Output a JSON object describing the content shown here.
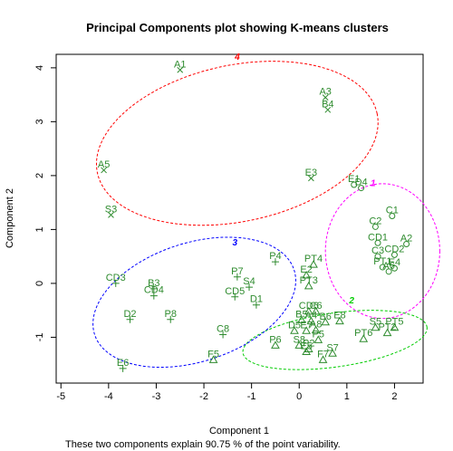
{
  "chart_data": {
    "type": "scatter",
    "title": "Principal Components plot showing K-means clusters",
    "xlabel": "Component 1",
    "ylabel": "Component 2",
    "footnote": "These two components explain 90.75 % of the point variability.",
    "xlim": [
      -5.1,
      2.6
    ],
    "ylim": [
      -1.85,
      4.25
    ],
    "xticks": [
      -5,
      -4,
      -3,
      -2,
      -1,
      0,
      1,
      2
    ],
    "yticks": [
      -1,
      0,
      1,
      2,
      3,
      4
    ],
    "grid": false,
    "clusters": [
      {
        "name": "1",
        "color": "#ff00ff",
        "center": [
          1.75,
          0.6
        ],
        "rx": 1.2,
        "ry": 1.25,
        "angle": 0,
        "label_at": [
          1.55,
          1.87
        ]
      },
      {
        "name": "2",
        "color": "#00cc00",
        "center": [
          0.75,
          -1.05
        ],
        "rx": 1.95,
        "ry": 0.5,
        "angle": 8,
        "label_at": [
          1.1,
          -0.3
        ]
      },
      {
        "name": "3",
        "color": "#0000ff",
        "center": [
          -2.2,
          -0.35
        ],
        "rx": 2.2,
        "ry": 1.1,
        "angle": 18,
        "label_at": [
          -1.35,
          0.77
        ]
      },
      {
        "name": "4",
        "color": "#ff0000",
        "center": [
          -1.3,
          2.6
        ],
        "rx": 3.0,
        "ry": 1.45,
        "angle": 12,
        "label_at": [
          -1.3,
          4.22
        ]
      }
    ],
    "points": [
      {
        "label": "A1",
        "x": -2.5,
        "y": 3.96,
        "marker": "x",
        "cluster": "4"
      },
      {
        "label": "A3",
        "x": 0.55,
        "y": 3.45,
        "marker": "x",
        "cluster": "4"
      },
      {
        "label": "B4",
        "x": 0.6,
        "y": 3.22,
        "marker": "x",
        "cluster": "4"
      },
      {
        "label": "A5",
        "x": -4.1,
        "y": 2.1,
        "marker": "x",
        "cluster": "4"
      },
      {
        "label": "E3",
        "x": 0.25,
        "y": 1.95,
        "marker": "x",
        "cluster": "4"
      },
      {
        "label": "S3",
        "x": -3.95,
        "y": 1.27,
        "marker": "x",
        "cluster": "4"
      },
      {
        "label": "E1",
        "x": 1.15,
        "y": 1.83,
        "marker": "o",
        "cluster": "1"
      },
      {
        "label": "D4",
        "x": 1.3,
        "y": 1.77,
        "marker": "o",
        "cluster": "1"
      },
      {
        "label": "C1",
        "x": 1.95,
        "y": 1.25,
        "marker": "o",
        "cluster": "1"
      },
      {
        "label": "C2",
        "x": 1.6,
        "y": 1.05,
        "marker": "o",
        "cluster": "1"
      },
      {
        "label": "CD1",
        "x": 1.65,
        "y": 0.75,
        "marker": "o",
        "cluster": "1"
      },
      {
        "label": "A2",
        "x": 2.25,
        "y": 0.73,
        "marker": "o",
        "cluster": "1"
      },
      {
        "label": "CD2",
        "x": 2.0,
        "y": 0.53,
        "marker": "o",
        "cluster": "1"
      },
      {
        "label": "C3",
        "x": 1.65,
        "y": 0.5,
        "marker": "o",
        "cluster": "1"
      },
      {
        "label": "PT1",
        "x": 1.75,
        "y": 0.3,
        "marker": "o",
        "cluster": "1"
      },
      {
        "label": "E4",
        "x": 2.0,
        "y": 0.28,
        "marker": "o",
        "cluster": "1"
      },
      {
        "label": "A6",
        "x": 1.88,
        "y": 0.22,
        "marker": "o",
        "cluster": "1"
      },
      {
        "label": "P4",
        "x": -0.5,
        "y": 0.4,
        "marker": "+",
        "cluster": "3"
      },
      {
        "label": "CD3",
        "x": -3.85,
        "y": 0.0,
        "marker": "+",
        "cluster": "3"
      },
      {
        "label": "P7",
        "x": -1.3,
        "y": 0.12,
        "marker": "+",
        "cluster": "3"
      },
      {
        "label": "S4",
        "x": -1.05,
        "y": -0.07,
        "marker": "+",
        "cluster": "3"
      },
      {
        "label": "B3",
        "x": -3.05,
        "y": -0.1,
        "marker": "+",
        "cluster": "3"
      },
      {
        "label": "CD4",
        "x": -3.05,
        "y": -0.23,
        "marker": "+",
        "cluster": "3"
      },
      {
        "label": "CD5",
        "x": -1.35,
        "y": -0.25,
        "marker": "+",
        "cluster": "3"
      },
      {
        "label": "D1",
        "x": -0.9,
        "y": -0.4,
        "marker": "+",
        "cluster": "3"
      },
      {
        "label": "D2",
        "x": -3.55,
        "y": -0.67,
        "marker": "+",
        "cluster": "3"
      },
      {
        "label": "P8",
        "x": -2.7,
        "y": -0.67,
        "marker": "+",
        "cluster": "3"
      },
      {
        "label": "C8",
        "x": -1.6,
        "y": -0.95,
        "marker": "+",
        "cluster": "3"
      },
      {
        "label": "E6",
        "x": -3.7,
        "y": -1.58,
        "marker": "+",
        "cluster": "3"
      },
      {
        "label": "PT4",
        "x": 0.3,
        "y": 0.35,
        "marker": "triangle",
        "cluster": "2"
      },
      {
        "label": "E2",
        "x": 0.15,
        "y": 0.15,
        "marker": "triangle",
        "cluster": "2"
      },
      {
        "label": "PT3",
        "x": 0.2,
        "y": -0.05,
        "marker": "triangle",
        "cluster": "2"
      },
      {
        "label": "CD6",
        "x": 0.2,
        "y": -0.52,
        "marker": "triangle",
        "cluster": "2"
      },
      {
        "label": "C6",
        "x": 0.35,
        "y": -0.52,
        "marker": "triangle",
        "cluster": "2"
      },
      {
        "label": "B5",
        "x": 0.05,
        "y": -0.68,
        "marker": "triangle",
        "cluster": "2"
      },
      {
        "label": "A4",
        "x": 0.25,
        "y": -0.7,
        "marker": "triangle",
        "cluster": "2"
      },
      {
        "label": "B6",
        "x": 0.55,
        "y": -0.72,
        "marker": "triangle",
        "cluster": "2"
      },
      {
        "label": "E8",
        "x": 0.85,
        "y": -0.7,
        "marker": "triangle",
        "cluster": "2"
      },
      {
        "label": "D5",
        "x": -0.1,
        "y": -0.88,
        "marker": "triangle",
        "cluster": "2"
      },
      {
        "label": "E7",
        "x": 0.15,
        "y": -0.88,
        "marker": "triangle",
        "cluster": "2"
      },
      {
        "label": "A8",
        "x": 0.35,
        "y": -0.87,
        "marker": "triangle",
        "cluster": "2"
      },
      {
        "label": "S5",
        "x": 1.6,
        "y": -0.82,
        "marker": "triangle",
        "cluster": "2"
      },
      {
        "label": "PT5",
        "x": 2.0,
        "y": -0.82,
        "marker": "triangle",
        "cluster": "2"
      },
      {
        "label": "PT2",
        "x": 1.85,
        "y": -0.92,
        "marker": "triangle",
        "cluster": "2"
      },
      {
        "label": "PT6",
        "x": 1.35,
        "y": -1.03,
        "marker": "triangle",
        "cluster": "2"
      },
      {
        "label": "P5",
        "x": 0.4,
        "y": -1.05,
        "marker": "triangle",
        "cluster": "2"
      },
      {
        "label": "P6",
        "x": -0.5,
        "y": -1.15,
        "marker": "triangle",
        "cluster": "2"
      },
      {
        "label": "S8",
        "x": 0.0,
        "y": -1.15,
        "marker": "triangle",
        "cluster": "2"
      },
      {
        "label": "P2",
        "x": 0.2,
        "y": -1.22,
        "marker": "triangle",
        "cluster": "2"
      },
      {
        "label": "E5",
        "x": 0.15,
        "y": -1.27,
        "marker": "triangle",
        "cluster": "2"
      },
      {
        "label": "S7",
        "x": 0.7,
        "y": -1.3,
        "marker": "triangle",
        "cluster": "2"
      },
      {
        "label": "F7",
        "x": 0.5,
        "y": -1.42,
        "marker": "triangle",
        "cluster": "2"
      },
      {
        "label": "F5",
        "x": -1.8,
        "y": -1.42,
        "marker": "triangle",
        "cluster": "2"
      }
    ]
  }
}
